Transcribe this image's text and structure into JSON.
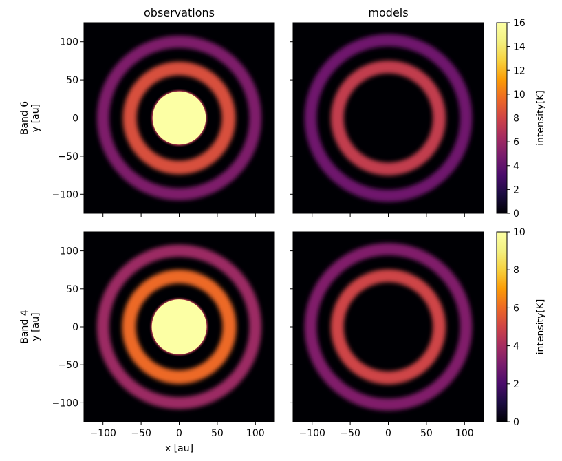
{
  "chart_data": {
    "type": "heatmap",
    "column_titles": [
      "observations",
      "models"
    ],
    "row_labels": [
      "Band 6",
      "Band 4"
    ],
    "xlabel": "x [au]",
    "ylabel": "y [au]",
    "xlim": [
      -125,
      125
    ],
    "ylim": [
      -125,
      125
    ],
    "xticks": [
      -100,
      -50,
      0,
      50,
      100
    ],
    "yticks": [
      -100,
      -50,
      0,
      50,
      100
    ],
    "colormap": "inferno",
    "colorbars": [
      {
        "label": "intensity[K]",
        "min": 0,
        "max": 16,
        "ticks": [
          0,
          2,
          4,
          6,
          8,
          10,
          12,
          14,
          16
        ]
      },
      {
        "label": "intensity[K]",
        "min": 0,
        "max": 10,
        "ticks": [
          0,
          2,
          4,
          6,
          8,
          10
        ]
      }
    ],
    "panels": [
      {
        "row": "Band 6",
        "column": "observations",
        "features": [
          {
            "kind": "central disk",
            "radius_au": 35,
            "intensity_K": 16
          },
          {
            "kind": "ring",
            "radius_au": 65,
            "width_au": 18,
            "intensity_K": 8.5
          },
          {
            "kind": "ring",
            "radius_au": 100,
            "width_au": 16,
            "intensity_K": 5
          }
        ]
      },
      {
        "row": "Band 6",
        "column": "models",
        "features": [
          {
            "kind": "ring",
            "radius_au": 67,
            "width_au": 17,
            "intensity_K": 7.5
          },
          {
            "kind": "ring",
            "radius_au": 102,
            "width_au": 16,
            "intensity_K": 4.5
          }
        ]
      },
      {
        "row": "Band 4",
        "column": "observations",
        "features": [
          {
            "kind": "central disk",
            "radius_au": 36,
            "intensity_K": 10
          },
          {
            "kind": "ring",
            "radius_au": 66,
            "width_au": 18,
            "intensity_K": 6
          },
          {
            "kind": "ring",
            "radius_au": 100,
            "width_au": 16,
            "intensity_K": 3.8
          }
        ]
      },
      {
        "row": "Band 4",
        "column": "models",
        "features": [
          {
            "kind": "ring",
            "radius_au": 67,
            "width_au": 17,
            "intensity_K": 5
          },
          {
            "kind": "ring",
            "radius_au": 102,
            "width_au": 16,
            "intensity_K": 3.2
          }
        ]
      }
    ]
  }
}
